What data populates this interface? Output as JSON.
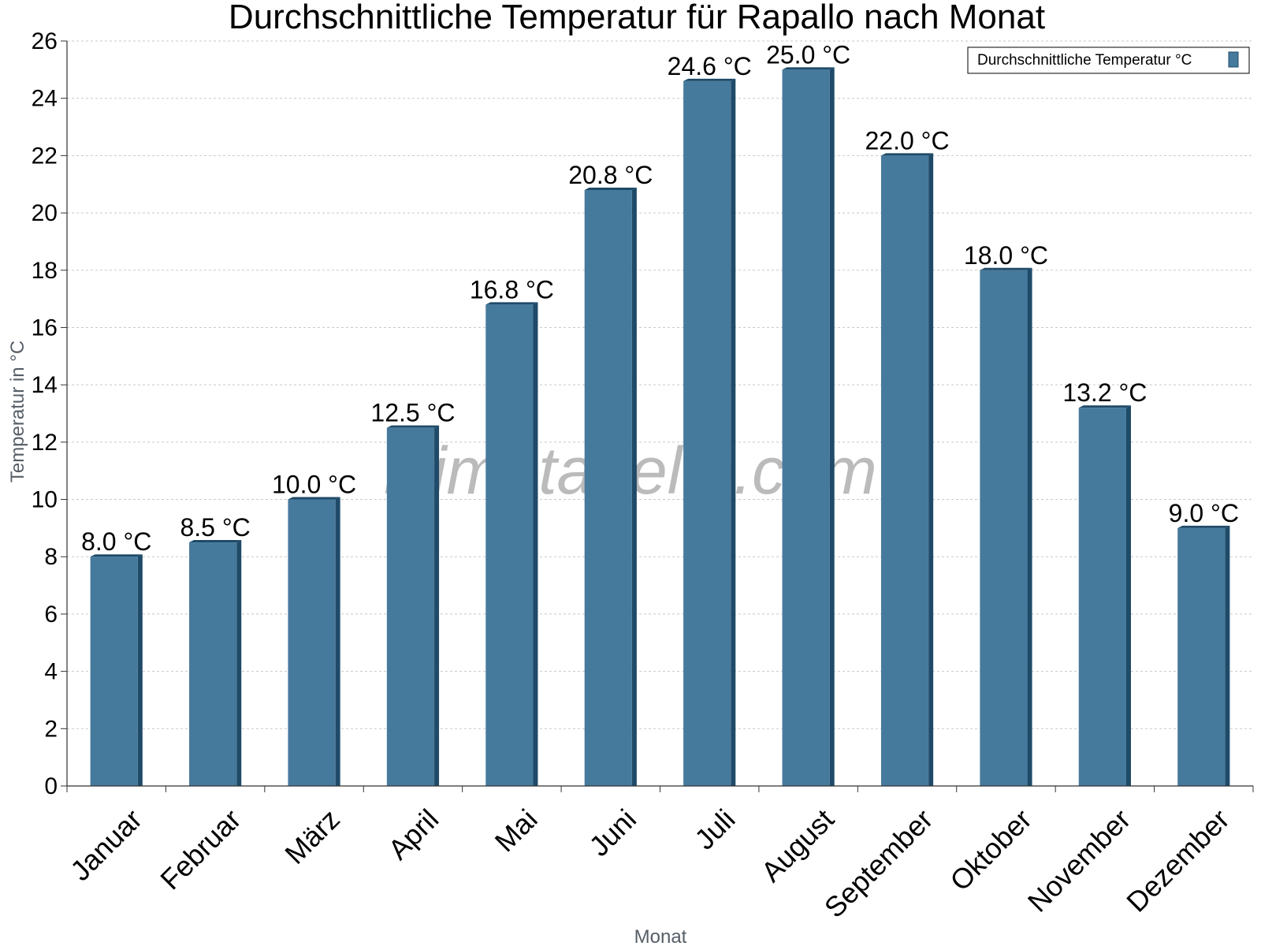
{
  "chart_data": {
    "type": "bar",
    "title": "Durchschnittliche Temperatur für Rapallo nach Monat",
    "xlabel": "Monat",
    "ylabel": "Temperatur in °C",
    "categories": [
      "Januar",
      "Februar",
      "März",
      "April",
      "Mai",
      "Juni",
      "Juli",
      "August",
      "September",
      "Oktober",
      "November",
      "Dezember"
    ],
    "series": [
      {
        "name": "Durchschnittliche Temperatur °C",
        "values": [
          8.0,
          8.5,
          10.0,
          12.5,
          16.8,
          20.8,
          24.6,
          25.0,
          22.0,
          18.0,
          13.2,
          9.0
        ],
        "color": "#467a9d",
        "side_color": "#1f4a68"
      }
    ],
    "data_labels": [
      "8.0 °C",
      "8.5 °C",
      "10.0 °C",
      "12.5 °C",
      "16.8 °C",
      "20.8 °C",
      "24.6 °C",
      "25.0 °C",
      "22.0 °C",
      "18.0 °C",
      "13.2 °C",
      "9.0 °C"
    ],
    "ylim": [
      0,
      26
    ],
    "yticks": [
      0,
      2,
      4,
      6,
      8,
      10,
      12,
      14,
      16,
      18,
      20,
      22,
      24,
      26
    ],
    "grid": true,
    "legend_position": "top-right"
  },
  "watermark": "klimatabelle.com"
}
